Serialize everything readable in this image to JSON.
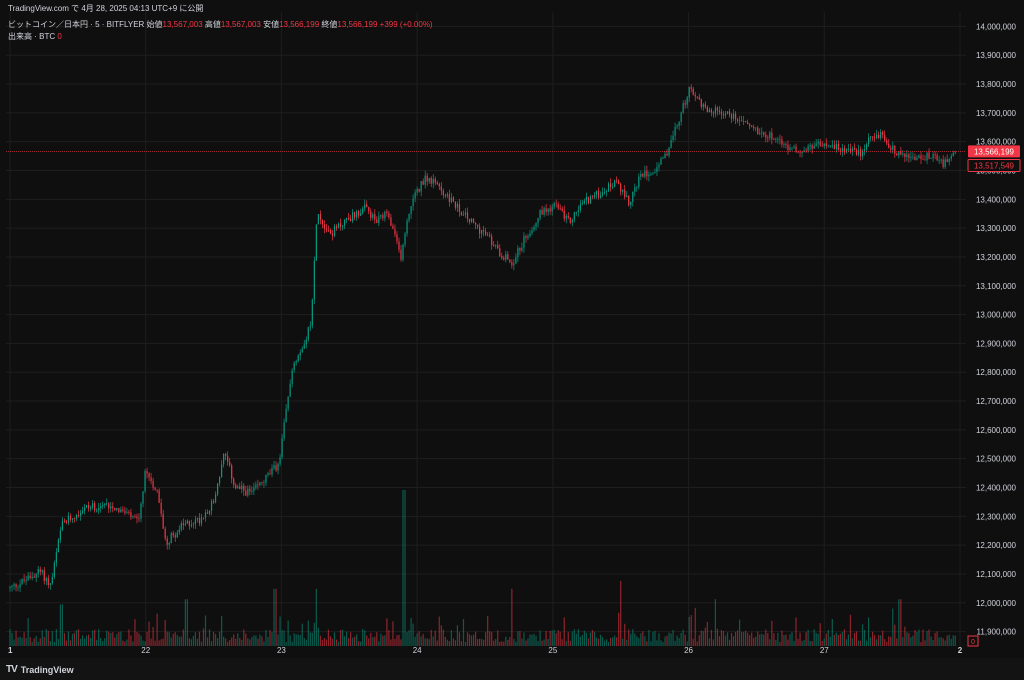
{
  "published": "TradingView.com で 4月 28, 2025 04:13 UTC+9 に公開",
  "symbol": "ビットコイン／日本円 · 5 · BITFLYER",
  "ohlc": {
    "open_label": "始値",
    "open": "13,567,003",
    "high_label": "高値",
    "high": "13,567,003",
    "low_label": "安値",
    "low": "13,566,199",
    "close_label": "終値",
    "close": "13,566,199",
    "change": "+399 (+0.00%)"
  },
  "volume_label": "出来高 · BTC",
  "volume_value": "0",
  "brand": "TradingView",
  "colors": {
    "up": "#089981",
    "down": "#f23645",
    "bg": "#0f0f0f",
    "grid": "#1e1e1e",
    "text": "#d1d4dc",
    "last_line": "#f23645"
  },
  "chart_data": {
    "type": "candlestick",
    "interval": "5",
    "ylim": [
      11850000,
      14050000
    ],
    "y_ticks": [
      "14,000,000",
      "13,900,000",
      "13,800,000",
      "13,700,000",
      "13,600,000",
      "13,500,000",
      "13,400,000",
      "13,300,000",
      "13,200,000",
      "13,100,000",
      "13,000,000",
      "12,900,000",
      "12,800,000",
      "12,700,000",
      "12,600,000",
      "12,500,000",
      "12,400,000",
      "12,300,000",
      "12,200,000",
      "12,100,000",
      "12,000,000",
      "11,900,000"
    ],
    "y_tick_values": [
      14000000,
      13900000,
      13800000,
      13700000,
      13600000,
      13500000,
      13400000,
      13300000,
      13200000,
      13100000,
      13000000,
      12900000,
      12800000,
      12700000,
      12600000,
      12500000,
      12400000,
      12300000,
      12200000,
      12100000,
      12000000,
      11900000
    ],
    "x_ticks": [
      "1",
      "22",
      "23",
      "24",
      "25",
      "26",
      "27",
      "2"
    ],
    "x_tick_positions": [
      0,
      1,
      2,
      3,
      4,
      5,
      6,
      7
    ],
    "day_span": 7,
    "price_path": [
      [
        0.0,
        12050000
      ],
      [
        0.12,
        12080000
      ],
      [
        0.22,
        12110000
      ],
      [
        0.3,
        12060000
      ],
      [
        0.38,
        12270000
      ],
      [
        0.55,
        12330000
      ],
      [
        0.75,
        12340000
      ],
      [
        0.88,
        12300000
      ],
      [
        0.95,
        12280000
      ],
      [
        1.0,
        12460000
      ],
      [
        1.08,
        12390000
      ],
      [
        1.15,
        12210000
      ],
      [
        1.28,
        12270000
      ],
      [
        1.4,
        12290000
      ],
      [
        1.5,
        12350000
      ],
      [
        1.58,
        12520000
      ],
      [
        1.66,
        12400000
      ],
      [
        1.78,
        12380000
      ],
      [
        1.9,
        12440000
      ],
      [
        1.98,
        12480000
      ],
      [
        2.08,
        12820000
      ],
      [
        2.16,
        12900000
      ],
      [
        2.22,
        12970000
      ],
      [
        2.26,
        13350000
      ],
      [
        2.36,
        13280000
      ],
      [
        2.48,
        13330000
      ],
      [
        2.62,
        13370000
      ],
      [
        2.7,
        13320000
      ],
      [
        2.78,
        13350000
      ],
      [
        2.88,
        13200000
      ],
      [
        2.95,
        13380000
      ],
      [
        3.06,
        13480000
      ],
      [
        3.16,
        13440000
      ],
      [
        3.28,
        13380000
      ],
      [
        3.4,
        13320000
      ],
      [
        3.5,
        13280000
      ],
      [
        3.6,
        13220000
      ],
      [
        3.7,
        13180000
      ],
      [
        3.8,
        13270000
      ],
      [
        3.92,
        13360000
      ],
      [
        4.02,
        13380000
      ],
      [
        4.12,
        13320000
      ],
      [
        4.22,
        13390000
      ],
      [
        4.34,
        13420000
      ],
      [
        4.46,
        13460000
      ],
      [
        4.56,
        13390000
      ],
      [
        4.66,
        13490000
      ],
      [
        4.74,
        13500000
      ],
      [
        4.82,
        13540000
      ],
      [
        4.92,
        13660000
      ],
      [
        5.0,
        13780000
      ],
      [
        5.06,
        13750000
      ],
      [
        5.14,
        13710000
      ],
      [
        5.26,
        13700000
      ],
      [
        5.38,
        13680000
      ],
      [
        5.5,
        13640000
      ],
      [
        5.62,
        13620000
      ],
      [
        5.72,
        13580000
      ],
      [
        5.86,
        13570000
      ],
      [
        5.96,
        13590000
      ],
      [
        6.06,
        13580000
      ],
      [
        6.16,
        13570000
      ],
      [
        6.28,
        13560000
      ],
      [
        6.36,
        13630000
      ],
      [
        6.42,
        13620000
      ],
      [
        6.54,
        13560000
      ],
      [
        6.66,
        13540000
      ],
      [
        6.78,
        13550000
      ],
      [
        6.88,
        13520000
      ],
      [
        6.96,
        13550000
      ]
    ],
    "volume_spikes": [
      [
        0.38,
        0.16
      ],
      [
        1.3,
        0.18
      ],
      [
        1.95,
        0.22
      ],
      [
        2.26,
        0.22
      ],
      [
        2.9,
        0.6
      ],
      [
        3.7,
        0.22
      ],
      [
        4.5,
        0.25
      ],
      [
        5.2,
        0.18
      ],
      [
        6.56,
        0.18
      ]
    ],
    "last_price": "13,566,199",
    "last_price_value": 13566199,
    "secondary_price": "13,517,549",
    "secondary_price_value": 13517549,
    "volume_axis_label": "0"
  }
}
